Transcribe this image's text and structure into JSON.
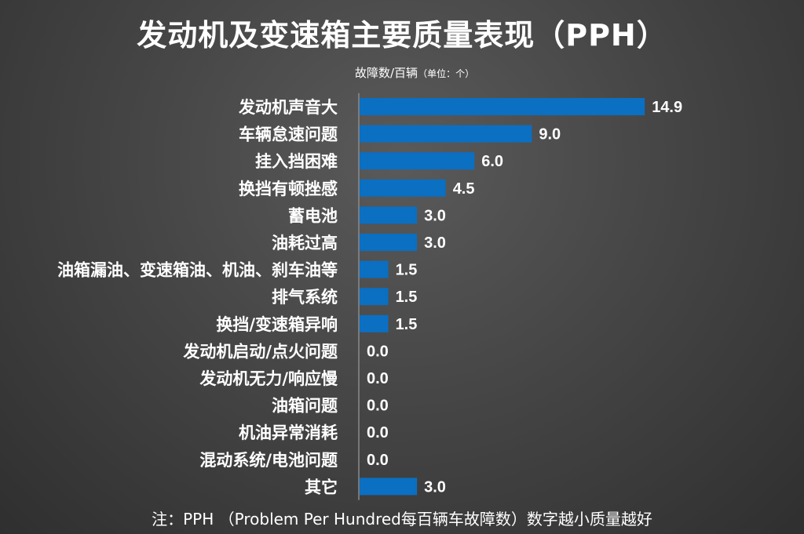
{
  "chart_data": {
    "type": "bar",
    "orientation": "horizontal",
    "title": "发动机及变速箱主要质量表现（PPH）",
    "ylabel": "故障数/百辆",
    "unit_note": "（单位：个）",
    "categories": [
      "发动机声音大",
      "车辆怠速问题",
      "挂入挡困难",
      "换挡有顿挫感",
      "蓄电池",
      "油耗过高",
      "油箱漏油、变速箱油、机油、刹车油等",
      "排气系统",
      "换挡/变速箱异响",
      "发动机启动/点火问题",
      "发动机无力/响应慢",
      "油箱问题",
      "机油异常消耗",
      "混动系统/电池问题",
      "其它"
    ],
    "values": [
      14.9,
      9.0,
      6.0,
      4.5,
      3.0,
      3.0,
      1.5,
      1.5,
      1.5,
      0.0,
      0.0,
      0.0,
      0.0,
      0.0,
      3.0
    ],
    "value_labels": [
      "14.9",
      "9.0",
      "6.0",
      "4.5",
      "3.0",
      "3.0",
      "1.5",
      "1.5",
      "1.5",
      "0.0",
      "0.0",
      "0.0",
      "0.0",
      "0.0",
      "3.0"
    ],
    "xlim": [
      0,
      16
    ],
    "grid": false,
    "legend": "none",
    "bar_color": "#0b6fc2",
    "axis_color": "#8a8a8a",
    "footnote": "注：PPH （Problem Per Hundred每百辆车故障数）数字越小质量越好"
  }
}
